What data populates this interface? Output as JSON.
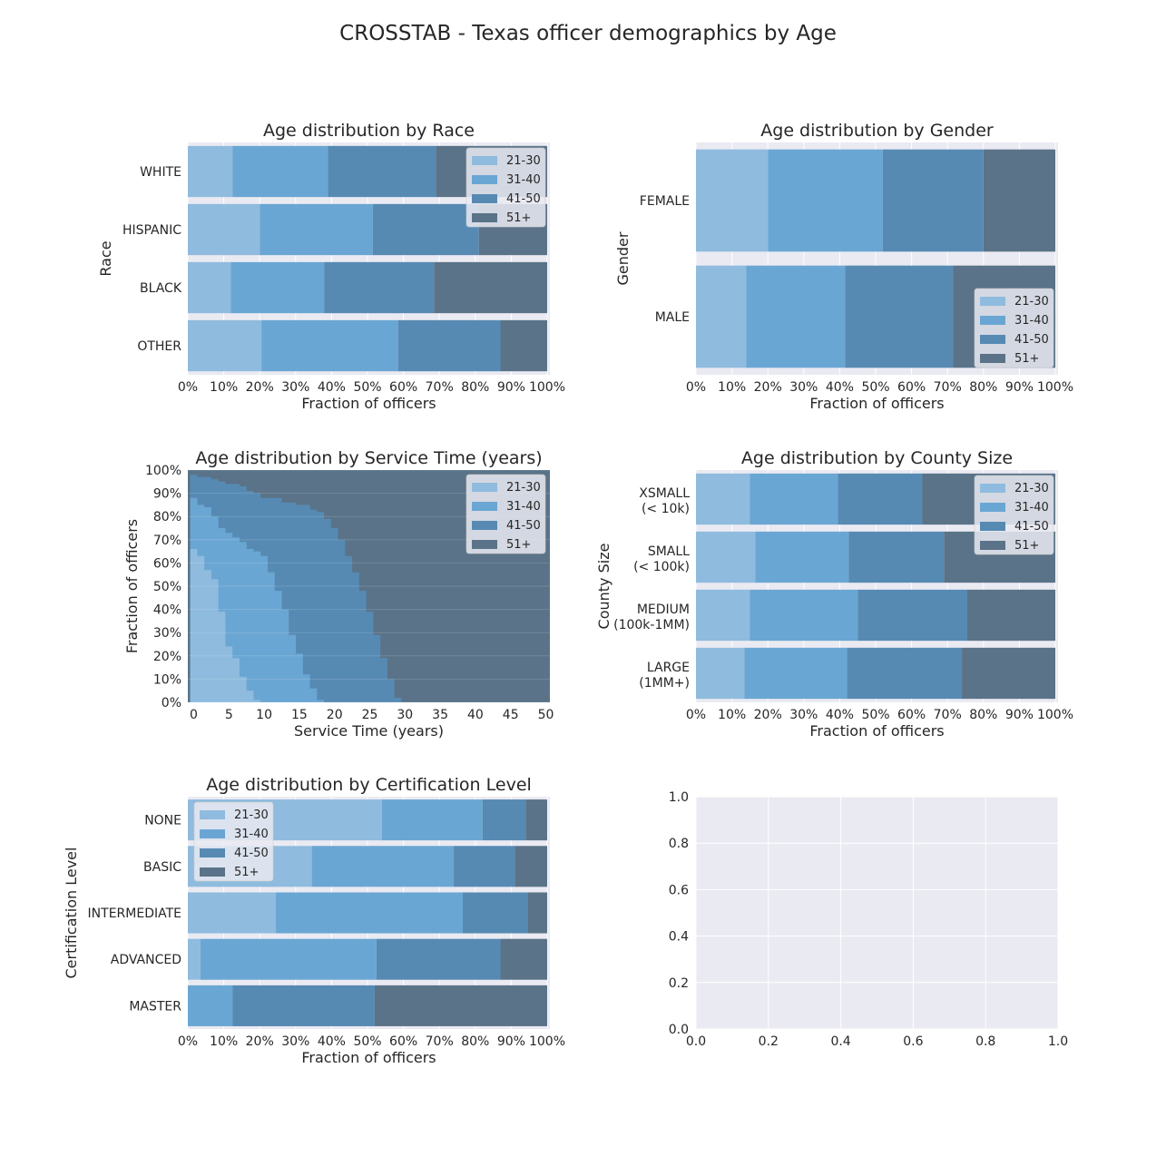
{
  "title": "CROSSTAB - Texas officer demographics by Age",
  "age_groups": [
    "21-30",
    "31-40",
    "41-50",
    "51+"
  ],
  "colors": [
    "#8fbbde",
    "#6aa6d3",
    "#568ab3",
    "#5a7388"
  ],
  "pct_ticks": [
    "0%",
    "10%",
    "20%",
    "30%",
    "40%",
    "50%",
    "60%",
    "70%",
    "80%",
    "90%",
    "100%"
  ],
  "chart_data": [
    {
      "id": "race",
      "type": "bar",
      "orientation": "horizontal-stacked",
      "title": "Age distribution by Race",
      "xlabel": "Fraction of officers",
      "ylabel": "Race",
      "xlim": [
        0,
        1
      ],
      "legend": "top-right",
      "categories": [
        [
          "WHITE"
        ],
        [
          "HISPANIC"
        ],
        [
          "BLACK"
        ],
        [
          "OTHER"
        ]
      ],
      "series": [
        {
          "name": "21-30",
          "values": [
            0.125,
            0.2,
            0.12,
            0.205
          ]
        },
        {
          "name": "31-40",
          "values": [
            0.265,
            0.315,
            0.26,
            0.38
          ]
        },
        {
          "name": "41-50",
          "values": [
            0.3,
            0.295,
            0.305,
            0.285
          ]
        },
        {
          "name": "51+",
          "values": [
            0.31,
            0.19,
            0.315,
            0.13
          ]
        }
      ]
    },
    {
      "id": "gender",
      "type": "bar",
      "orientation": "horizontal-stacked",
      "title": "Age distribution by Gender",
      "xlabel": "Fraction of officers",
      "ylabel": "Gender",
      "xlim": [
        0,
        1
      ],
      "legend": "bottom-right",
      "categories": [
        [
          "FEMALE"
        ],
        [
          "MALE"
        ]
      ],
      "series": [
        {
          "name": "21-30",
          "values": [
            0.2,
            0.14
          ]
        },
        {
          "name": "31-40",
          "values": [
            0.32,
            0.275
          ]
        },
        {
          "name": "41-50",
          "values": [
            0.28,
            0.3
          ]
        },
        {
          "name": "51+",
          "values": [
            0.2,
            0.285
          ]
        }
      ]
    },
    {
      "id": "service",
      "type": "area",
      "title": "Age distribution by Service Time (years)",
      "xlabel": "Service Time (years)",
      "ylabel": "Fraction of officers",
      "xlim": [
        -1,
        50
      ],
      "ylim": [
        0,
        1
      ],
      "legend": "top-right",
      "x_ticks": [
        "0",
        "5",
        "10",
        "15",
        "20",
        "25",
        "30",
        "35",
        "40",
        "45",
        "50"
      ],
      "x_tick_values": [
        0,
        5,
        10,
        15,
        20,
        25,
        30,
        35,
        40,
        45,
        50
      ],
      "x": [
        0,
        1,
        2,
        3,
        4,
        5,
        6,
        7,
        8,
        9,
        10,
        11,
        12,
        13,
        14,
        15,
        16,
        17,
        18,
        19,
        20,
        21,
        22,
        23,
        24,
        25,
        26,
        27,
        28,
        29,
        30,
        31,
        32,
        33,
        34,
        35,
        36,
        37,
        38,
        39,
        40,
        41,
        42,
        43,
        44,
        45,
        46,
        47,
        48,
        49
      ],
      "cumulative": {
        "21-30": [
          0.66,
          0.63,
          0.57,
          0.53,
          0.39,
          0.24,
          0.19,
          0.11,
          0.05,
          0.01,
          0,
          0,
          0,
          0,
          0,
          0,
          0,
          0,
          0,
          0,
          0,
          0,
          0,
          0,
          0,
          0,
          0,
          0,
          0,
          0,
          0,
          0,
          0,
          0,
          0,
          0,
          0,
          0,
          0,
          0,
          0,
          0,
          0,
          0,
          0,
          0,
          0,
          0,
          0,
          0
        ],
        "31-40": [
          0.88,
          0.85,
          0.84,
          0.8,
          0.75,
          0.73,
          0.71,
          0.69,
          0.66,
          0.65,
          0.63,
          0.56,
          0.48,
          0.4,
          0.29,
          0.21,
          0.12,
          0.06,
          0.01,
          0,
          0,
          0,
          0,
          0,
          0,
          0,
          0,
          0,
          0,
          0,
          0,
          0,
          0,
          0,
          0,
          0,
          0,
          0,
          0,
          0,
          0,
          0,
          0,
          0,
          0,
          0,
          0,
          0,
          0,
          0
        ],
        "41-50": [
          0.98,
          0.97,
          0.97,
          0.96,
          0.95,
          0.94,
          0.94,
          0.93,
          0.91,
          0.9,
          0.88,
          0.88,
          0.88,
          0.86,
          0.86,
          0.85,
          0.85,
          0.83,
          0.82,
          0.79,
          0.75,
          0.7,
          0.63,
          0.56,
          0.48,
          0.39,
          0.29,
          0.19,
          0.1,
          0.02,
          0,
          0,
          0,
          0,
          0,
          0,
          0,
          0,
          0,
          0,
          0,
          0,
          0,
          0,
          0,
          0,
          0,
          0,
          0,
          0
        ]
      }
    },
    {
      "id": "county",
      "type": "bar",
      "orientation": "horizontal-stacked",
      "title": "Age distribution by County Size",
      "xlabel": "Fraction of officers",
      "ylabel": "County Size",
      "xlim": [
        0,
        1
      ],
      "legend": "top-right",
      "categories": [
        [
          "XSMALL",
          "(< 10k)"
        ],
        [
          "SMALL",
          "(< 100k)"
        ],
        [
          "MEDIUM",
          "(100k-1MM)"
        ],
        [
          "LARGE",
          "(1MM+)"
        ]
      ],
      "series": [
        {
          "name": "21-30",
          "values": [
            0.15,
            0.165,
            0.15,
            0.135
          ]
        },
        {
          "name": "31-40",
          "values": [
            0.245,
            0.26,
            0.3,
            0.285
          ]
        },
        {
          "name": "41-50",
          "values": [
            0.235,
            0.265,
            0.305,
            0.32
          ]
        },
        {
          "name": "51+",
          "values": [
            0.37,
            0.31,
            0.245,
            0.26
          ]
        }
      ]
    },
    {
      "id": "cert",
      "type": "bar",
      "orientation": "horizontal-stacked",
      "title": "Age distribution by Certification Level",
      "xlabel": "Fraction of officers",
      "ylabel": "Certification Level",
      "xlim": [
        0,
        1
      ],
      "legend": "top-left",
      "categories": [
        [
          "NONE"
        ],
        [
          "BASIC"
        ],
        [
          "INTERMEDIATE"
        ],
        [
          "ADVANCED"
        ],
        [
          "MASTER"
        ]
      ],
      "series": [
        {
          "name": "21-30",
          "values": [
            0.54,
            0.345,
            0.245,
            0.035,
            0
          ]
        },
        {
          "name": "31-40",
          "values": [
            0.28,
            0.395,
            0.52,
            0.49,
            0.125
          ]
        },
        {
          "name": "41-50",
          "values": [
            0.12,
            0.17,
            0.18,
            0.345,
            0.395
          ]
        },
        {
          "name": "51+",
          "values": [
            0.06,
            0.09,
            0.055,
            0.13,
            0.48
          ]
        }
      ]
    },
    {
      "id": "empty",
      "type": "scatter",
      "title": "",
      "xlim": [
        0,
        1
      ],
      "ylim": [
        0,
        1
      ],
      "x_ticks": [
        "0.0",
        "0.2",
        "0.4",
        "0.6",
        "0.8",
        "1.0"
      ],
      "y_ticks": [
        "0.0",
        "0.2",
        "0.4",
        "0.6",
        "0.8",
        "1.0"
      ],
      "series": []
    }
  ]
}
